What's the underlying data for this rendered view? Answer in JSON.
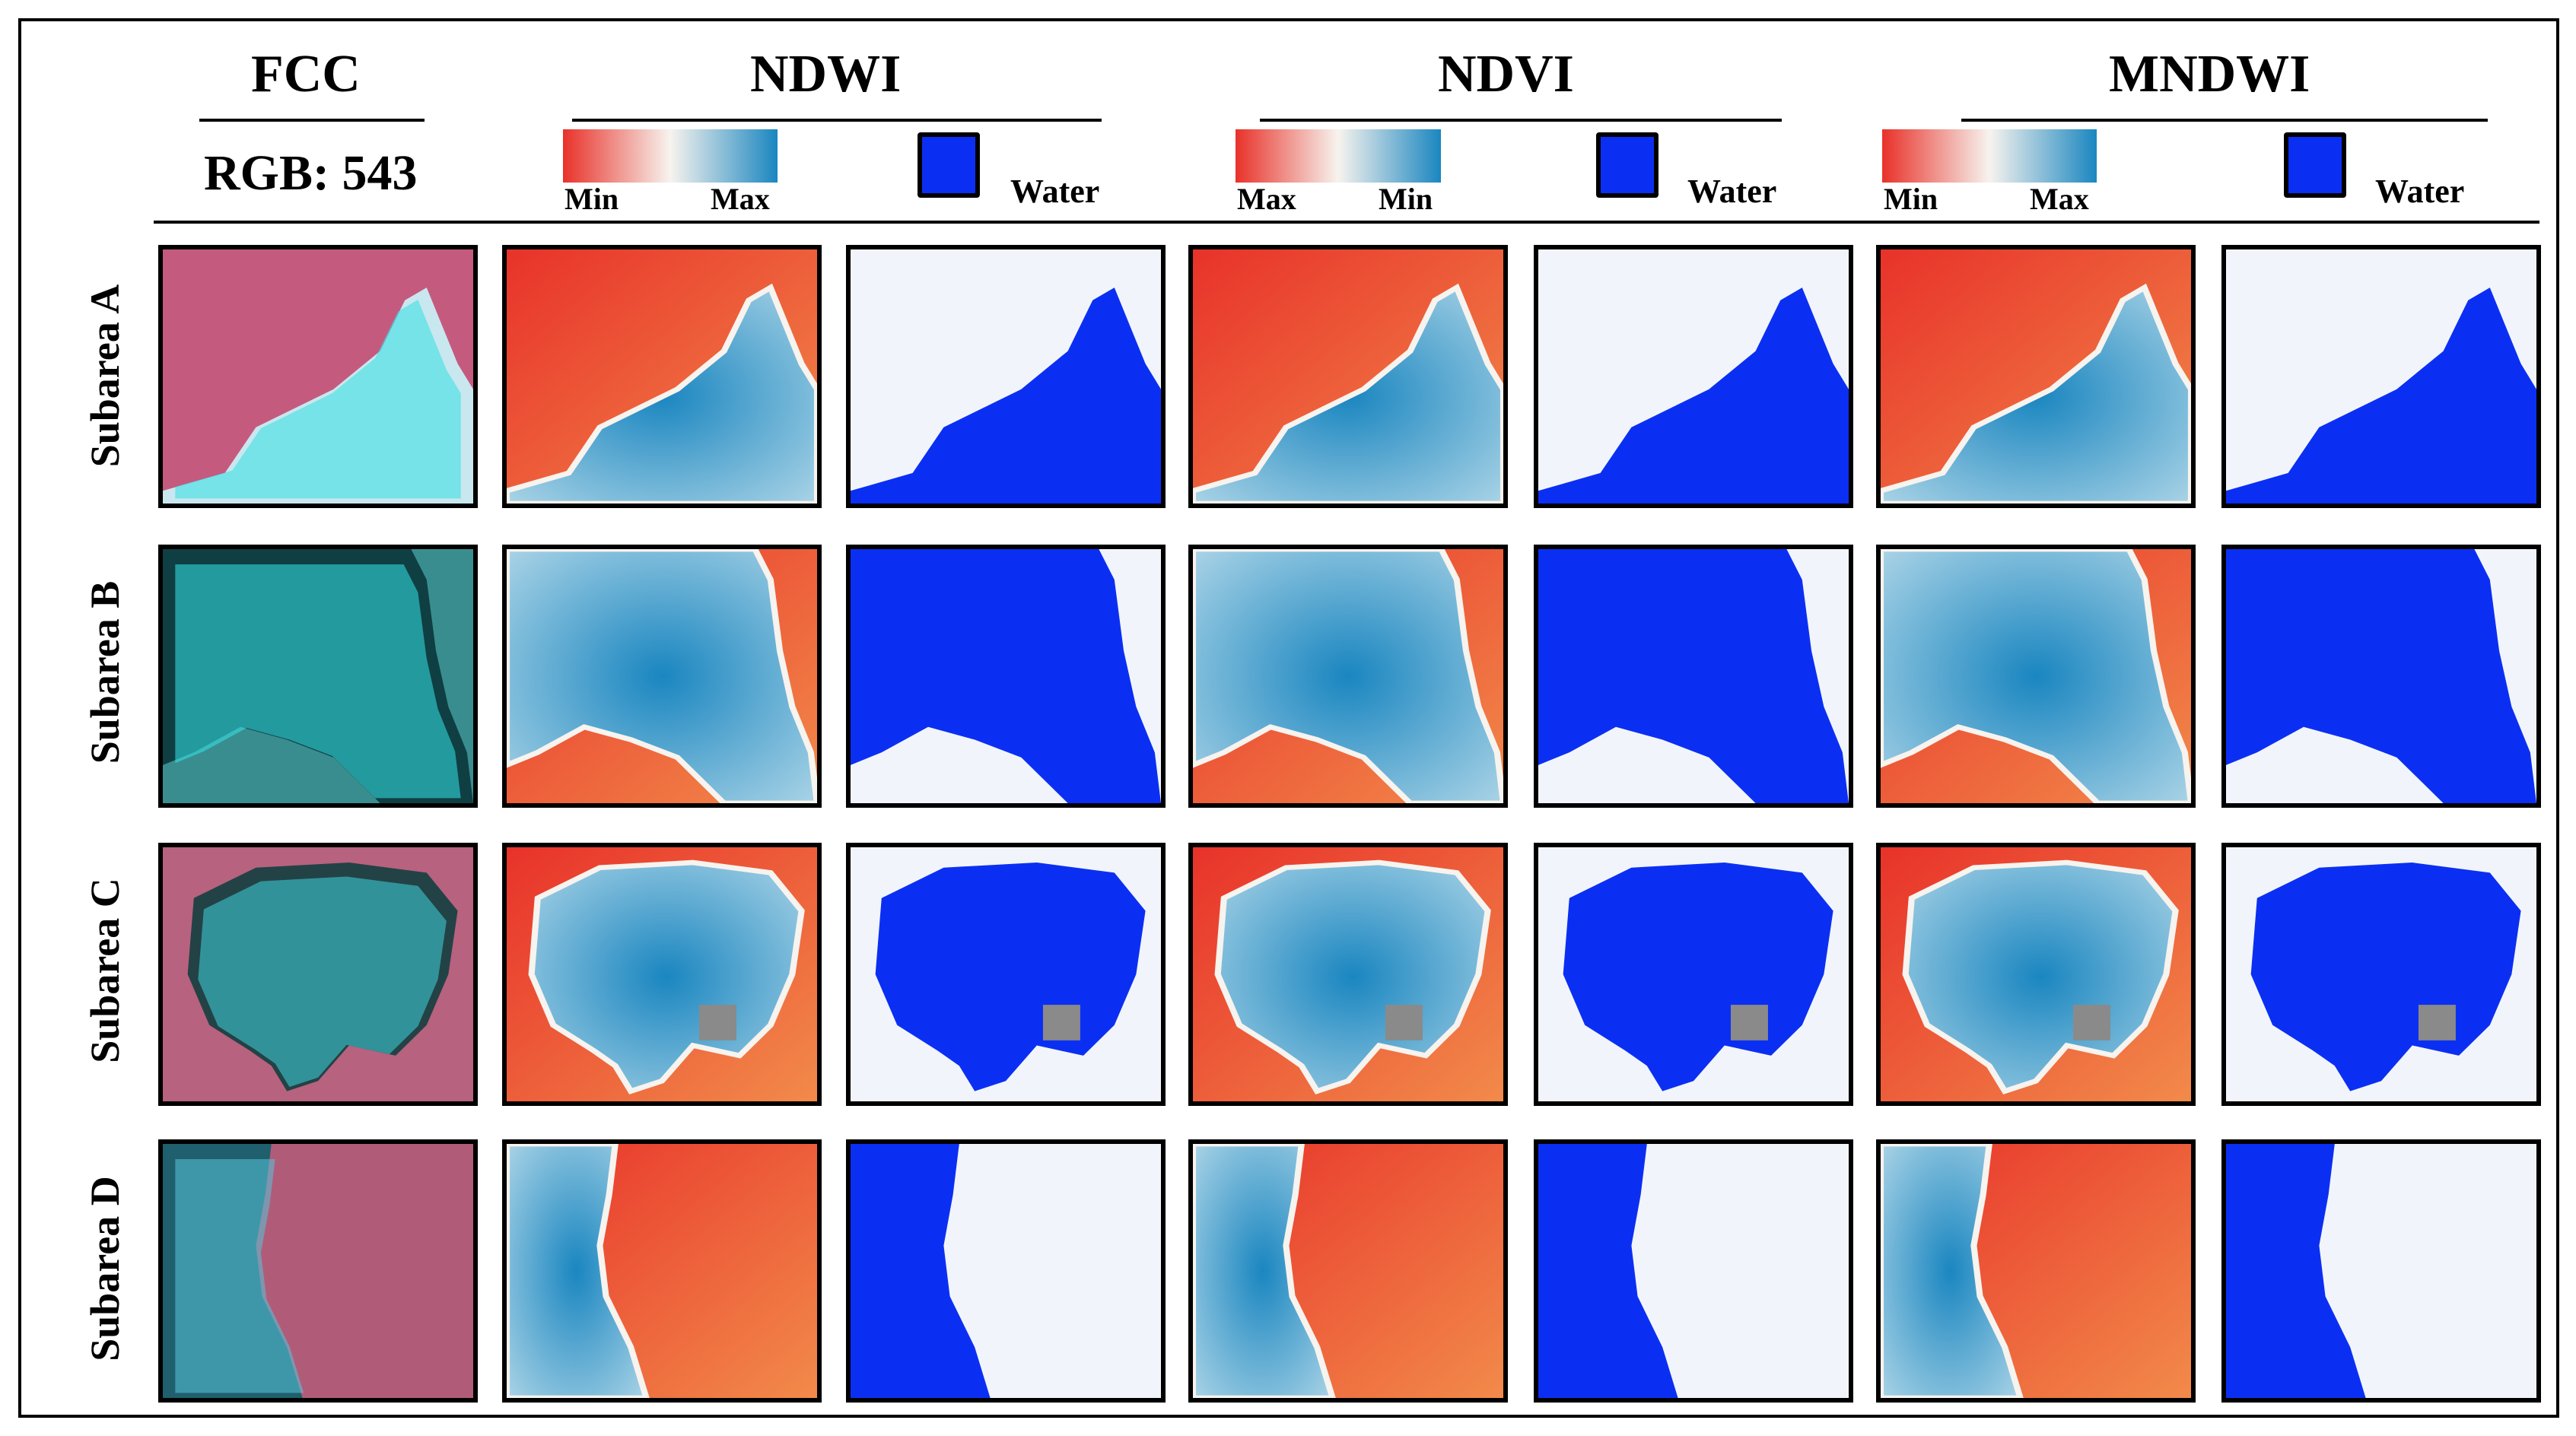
{
  "figure": {
    "columns": {
      "fcc": {
        "title": "FCC",
        "subtitle": "RGB: 543"
      },
      "ndwi": {
        "title": "NDWI",
        "bar_left": "Min",
        "bar_right": "Max",
        "water": "Water"
      },
      "ndvi": {
        "title": "NDVI",
        "bar_left": "Max",
        "bar_right": "Min",
        "water": "Water"
      },
      "mndwi": {
        "title": "MNDWI",
        "bar_left": "Min",
        "bar_right": "Max",
        "water": "Water"
      }
    },
    "rows": [
      {
        "label": "Subarea A"
      },
      {
        "label": "Subarea B"
      },
      {
        "label": "Subarea C"
      },
      {
        "label": "Subarea D"
      }
    ],
    "colors": {
      "water": "#0b2ff2",
      "land": "#f1f5fb",
      "index_low": "#e8322a",
      "index_mid": "#f7f3ee",
      "index_high": "#1a86c0",
      "nodata": "#8a8a8a"
    }
  }
}
